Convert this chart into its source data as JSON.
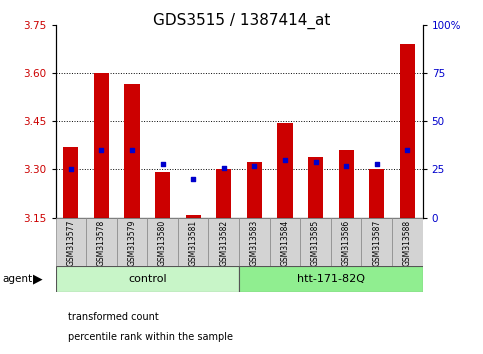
{
  "title": "GDS3515 / 1387414_at",
  "samples": [
    "GSM313577",
    "GSM313578",
    "GSM313579",
    "GSM313580",
    "GSM313581",
    "GSM313582",
    "GSM313583",
    "GSM313584",
    "GSM313585",
    "GSM313586",
    "GSM313587",
    "GSM313588"
  ],
  "transformed_count": [
    3.37,
    3.6,
    3.565,
    3.293,
    3.157,
    3.302,
    3.322,
    3.443,
    3.338,
    3.362,
    3.302,
    3.69
  ],
  "percentile_rank": [
    25,
    35,
    35,
    28,
    20,
    26,
    27,
    30,
    29,
    27,
    28,
    35
  ],
  "y_min": 3.15,
  "y_max": 3.75,
  "y_ticks_left": [
    3.15,
    3.3,
    3.45,
    3.6,
    3.75
  ],
  "y_ticks_right_vals": [
    0,
    25,
    50,
    75,
    100
  ],
  "y_ticks_right_labels": [
    "0",
    "25",
    "50",
    "75",
    "100%"
  ],
  "group_spans": [
    {
      "label": "control",
      "start": 0,
      "end": 5,
      "color": "#c8f5c8"
    },
    {
      "label": "htt-171-82Q",
      "start": 6,
      "end": 11,
      "color": "#90ee90"
    }
  ],
  "bar_color": "#cc0000",
  "dot_color": "#0000cc",
  "bar_bottom": 3.15,
  "tick_color_left": "#cc0000",
  "tick_color_right": "#0000cc",
  "bg_color": "#ffffff",
  "legend1": "transformed count",
  "legend2": "percentile rank within the sample",
  "title_fontsize": 11,
  "axis_fontsize": 7.5,
  "legend_fontsize": 7,
  "sample_fontsize": 5.5,
  "group_fontsize": 8
}
